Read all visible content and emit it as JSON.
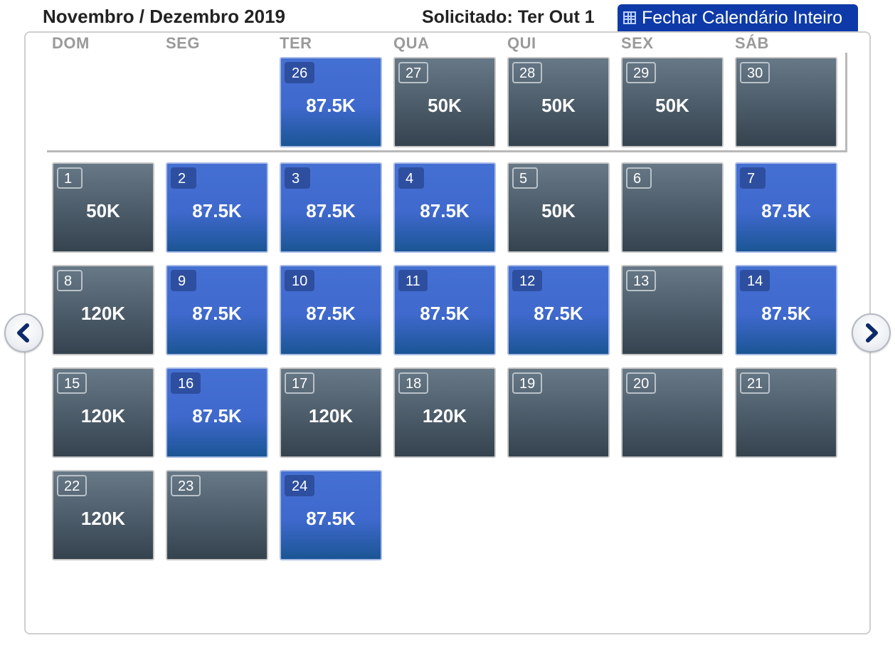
{
  "header": {
    "title": "Novembro / Dezembro 2019",
    "requested": "Solicitado: Ter Out 1",
    "close_button": "Fechar Calendário Inteiro"
  },
  "weekdays": [
    "DOM",
    "SEG",
    "TER",
    "QUA",
    "QUI",
    "SEX",
    "SÁB"
  ],
  "colors": {
    "available_blue": "#3f69cd",
    "unavailable_grey": "#4c5a66",
    "header_button": "#0d3aa8"
  },
  "nav": {
    "prev": "chevron-left-icon",
    "next": "chevron-right-icon"
  },
  "november": [
    {
      "day": "26",
      "price": "87.5K",
      "style": "blue"
    },
    {
      "day": "27",
      "price": "50K",
      "style": "grey"
    },
    {
      "day": "28",
      "price": "50K",
      "style": "grey"
    },
    {
      "day": "29",
      "price": "50K",
      "style": "grey"
    },
    {
      "day": "30",
      "price": "",
      "style": "grey"
    }
  ],
  "december": [
    {
      "day": "1",
      "price": "50K",
      "style": "grey"
    },
    {
      "day": "2",
      "price": "87.5K",
      "style": "blue"
    },
    {
      "day": "3",
      "price": "87.5K",
      "style": "blue"
    },
    {
      "day": "4",
      "price": "87.5K",
      "style": "blue"
    },
    {
      "day": "5",
      "price": "50K",
      "style": "grey"
    },
    {
      "day": "6",
      "price": "",
      "style": "grey"
    },
    {
      "day": "7",
      "price": "87.5K",
      "style": "blue"
    },
    {
      "day": "8",
      "price": "120K",
      "style": "grey"
    },
    {
      "day": "9",
      "price": "87.5K",
      "style": "blue"
    },
    {
      "day": "10",
      "price": "87.5K",
      "style": "blue"
    },
    {
      "day": "11",
      "price": "87.5K",
      "style": "blue"
    },
    {
      "day": "12",
      "price": "87.5K",
      "style": "blue"
    },
    {
      "day": "13",
      "price": "",
      "style": "grey"
    },
    {
      "day": "14",
      "price": "87.5K",
      "style": "blue"
    },
    {
      "day": "15",
      "price": "120K",
      "style": "grey"
    },
    {
      "day": "16",
      "price": "87.5K",
      "style": "blue"
    },
    {
      "day": "17",
      "price": "120K",
      "style": "grey"
    },
    {
      "day": "18",
      "price": "120K",
      "style": "grey"
    },
    {
      "day": "19",
      "price": "",
      "style": "grey"
    },
    {
      "day": "20",
      "price": "",
      "style": "grey"
    },
    {
      "day": "21",
      "price": "",
      "style": "grey"
    },
    {
      "day": "22",
      "price": "120K",
      "style": "grey"
    },
    {
      "day": "23",
      "price": "",
      "style": "grey"
    },
    {
      "day": "24",
      "price": "87.5K",
      "style": "blue"
    }
  ]
}
